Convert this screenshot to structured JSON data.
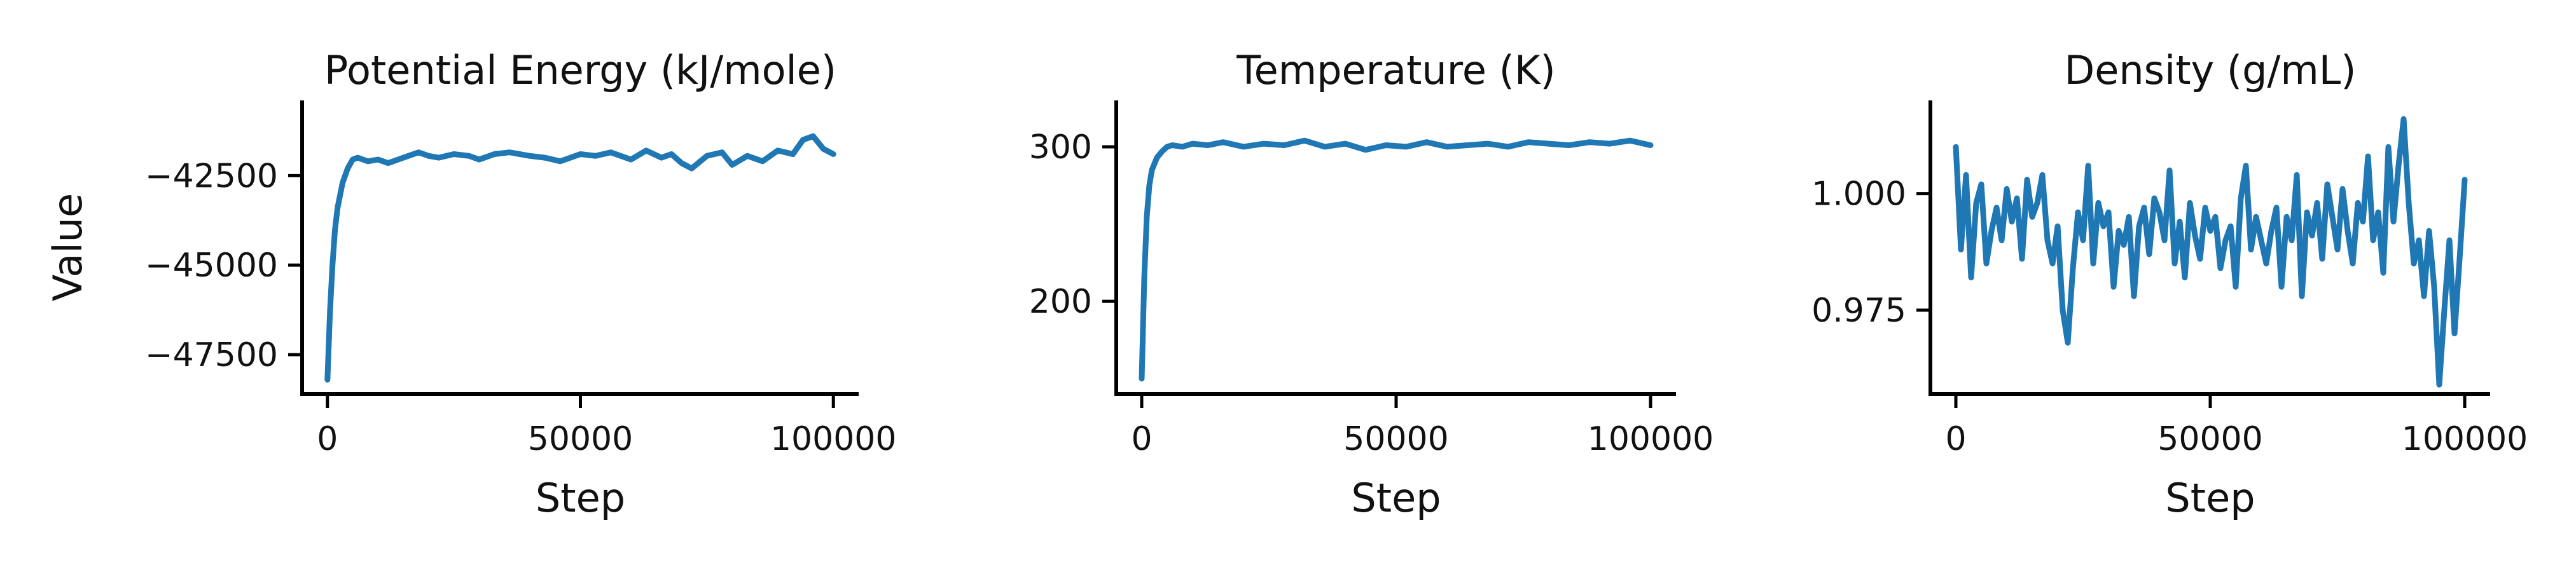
{
  "chart_data": [
    {
      "type": "line",
      "title": "Potential Energy (kJ/mole)",
      "xlabel": "Step",
      "ylabel": "Value",
      "xlim": [
        -5000,
        105000
      ],
      "ylim": [
        -48600,
        -40400
      ],
      "xticks": [
        0,
        50000,
        100000
      ],
      "xtick_labels": [
        "0",
        "50000",
        "100000"
      ],
      "yticks": [
        -47500,
        -45000,
        -42500
      ],
      "ytick_labels": [
        "−47500",
        "−45000",
        "−42500"
      ],
      "grid": false,
      "series": [
        {
          "color": "#1f77b4",
          "x": [
            0,
            500,
            1000,
            1500,
            2000,
            3000,
            4000,
            5000,
            6000,
            8000,
            10000,
            12000,
            15000,
            18000,
            20000,
            22000,
            25000,
            28000,
            30000,
            33000,
            36000,
            40000,
            43000,
            46000,
            50000,
            53000,
            56000,
            60000,
            63000,
            66000,
            68000,
            70000,
            72000,
            75000,
            78000,
            80000,
            83000,
            86000,
            89000,
            92000,
            94000,
            96000,
            98000,
            100000
          ],
          "y": [
            -48200,
            -46300,
            -45000,
            -44000,
            -43400,
            -42700,
            -42300,
            -42050,
            -42000,
            -42100,
            -42050,
            -42150,
            -42000,
            -41850,
            -41950,
            -42000,
            -41900,
            -41950,
            -42050,
            -41900,
            -41850,
            -41950,
            -42000,
            -42100,
            -41900,
            -41950,
            -41850,
            -42050,
            -41800,
            -42000,
            -41900,
            -42150,
            -42300,
            -41950,
            -41850,
            -42200,
            -41950,
            -42100,
            -41800,
            -41900,
            -41500,
            -41400,
            -41750,
            -41900
          ]
        }
      ]
    },
    {
      "type": "line",
      "title": "Temperature (K)",
      "xlabel": "Step",
      "ylabel": "",
      "xlim": [
        -5000,
        105000
      ],
      "ylim": [
        140,
        330
      ],
      "xticks": [
        0,
        50000,
        100000
      ],
      "xtick_labels": [
        "0",
        "50000",
        "100000"
      ],
      "yticks": [
        200,
        300
      ],
      "ytick_labels": [
        "200",
        "300"
      ],
      "grid": false,
      "series": [
        {
          "color": "#1f77b4",
          "x": [
            0,
            500,
            1000,
            1500,
            2000,
            3000,
            4000,
            5000,
            6000,
            8000,
            10000,
            13000,
            16000,
            20000,
            24000,
            28000,
            32000,
            36000,
            40000,
            44000,
            48000,
            52000,
            56000,
            60000,
            64000,
            68000,
            72000,
            76000,
            80000,
            84000,
            88000,
            92000,
            96000,
            100000
          ],
          "y": [
            150,
            215,
            255,
            275,
            285,
            293,
            297,
            300,
            301,
            300,
            302,
            301,
            303,
            300,
            302,
            301,
            304,
            300,
            302,
            298,
            301,
            300,
            303,
            300,
            301,
            302,
            300,
            303,
            302,
            301,
            303,
            302,
            304,
            301
          ]
        }
      ]
    },
    {
      "type": "line",
      "title": "Density (g/mL)",
      "xlabel": "Step",
      "ylabel": "",
      "xlim": [
        -5000,
        105000
      ],
      "ylim": [
        0.957,
        1.02
      ],
      "xticks": [
        0,
        50000,
        100000
      ],
      "xtick_labels": [
        "0",
        "50000",
        "100000"
      ],
      "yticks": [
        0.975,
        1.0
      ],
      "ytick_labels": [
        "0.975",
        "1.000"
      ],
      "grid": false,
      "series": [
        {
          "color": "#1f77b4",
          "x": [
            0,
            1000,
            2000,
            3000,
            4000,
            5000,
            6000,
            7000,
            8000,
            9000,
            10000,
            11000,
            12000,
            13000,
            14000,
            15000,
            16000,
            17000,
            18000,
            19000,
            20000,
            21000,
            22000,
            23000,
            24000,
            25000,
            26000,
            27000,
            28000,
            29000,
            30000,
            31000,
            32000,
            33000,
            34000,
            35000,
            36000,
            37000,
            38000,
            39000,
            40000,
            41000,
            42000,
            43000,
            44000,
            45000,
            46000,
            47000,
            48000,
            49000,
            50000,
            51000,
            52000,
            53000,
            54000,
            55000,
            56000,
            57000,
            58000,
            59000,
            60000,
            61000,
            62000,
            63000,
            64000,
            65000,
            66000,
            67000,
            68000,
            69000,
            70000,
            71000,
            72000,
            73000,
            74000,
            75000,
            76000,
            77000,
            78000,
            79000,
            80000,
            81000,
            82000,
            83000,
            84000,
            85000,
            86000,
            87000,
            88000,
            89000,
            90000,
            91000,
            92000,
            93000,
            94000,
            95000,
            96000,
            97000,
            98000,
            99000,
            100000
          ],
          "y": [
            1.01,
            0.988,
            1.004,
            0.982,
            0.998,
            1.002,
            0.985,
            0.992,
            0.997,
            0.99,
            1.001,
            0.994,
            0.999,
            0.986,
            1.003,
            0.995,
            0.998,
            1.004,
            0.99,
            0.985,
            0.993,
            0.975,
            0.968,
            0.984,
            0.996,
            0.99,
            1.006,
            0.985,
            0.998,
            0.993,
            0.996,
            0.98,
            0.992,
            0.989,
            0.995,
            0.978,
            0.993,
            0.997,
            0.987,
            0.999,
            0.996,
            0.99,
            1.005,
            0.985,
            0.994,
            0.982,
            0.998,
            0.991,
            0.986,
            0.997,
            0.992,
            0.995,
            0.984,
            0.99,
            0.993,
            0.98,
            0.999,
            1.006,
            0.988,
            0.995,
            0.99,
            0.985,
            0.992,
            0.997,
            0.98,
            0.995,
            0.99,
            1.004,
            0.978,
            0.996,
            0.991,
            0.998,
            0.986,
            1.002,
            0.995,
            0.988,
            1.001,
            0.992,
            0.985,
            0.998,
            0.994,
            1.008,
            0.99,
            0.996,
            0.983,
            1.01,
            0.994,
            1.006,
            1.016,
            0.998,
            0.985,
            0.99,
            0.978,
            0.992,
            0.98,
            0.959,
            0.975,
            0.99,
            0.97,
            0.986,
            1.003
          ]
        }
      ]
    }
  ]
}
